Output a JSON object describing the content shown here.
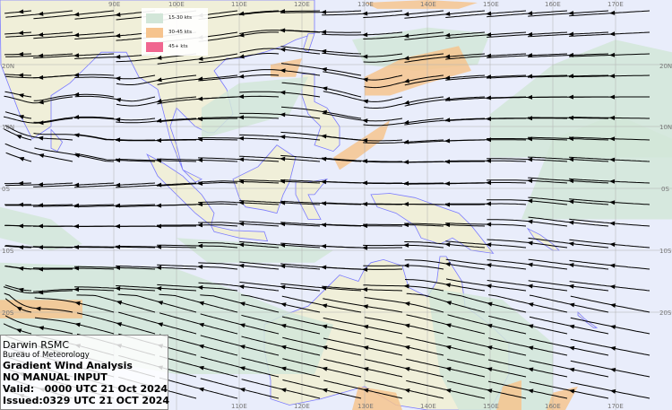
{
  "info_box": {
    "office": "Darwin RSMC",
    "agency": "Bureau of Meteorology",
    "product": "Gradient Wind Analysis",
    "note": "NO MANUAL INPUT",
    "valid": "Valid:   0000 UTC 21 Oct 2024",
    "issued": "Issued:0329 UTC 21 OCT 2024"
  },
  "legend": [
    {
      "label": "15-30 kts",
      "color": "#d2e6d8"
    },
    {
      "label": "30-45 kts",
      "color": "#f6c48e"
    },
    {
      "label": "45+ kts",
      "color": "#f06690"
    }
  ],
  "grid": {
    "top_lon_labels": [
      "90E",
      "100E",
      "110E",
      "120E",
      "130E",
      "140E",
      "150E",
      "160E",
      "170E"
    ],
    "bottom_lon_labels": [
      "110E",
      "120E",
      "130E",
      "140E",
      "150E",
      "160E",
      "170E"
    ],
    "left_lat_labels": [
      "20N",
      "10N",
      "0S",
      "10S",
      "20S"
    ],
    "right_lat_labels": [
      "20N",
      "10N",
      "0S",
      "10S",
      "20S"
    ]
  },
  "colors": {
    "ocean": "#e9edfb",
    "land": "#f0efd9",
    "coastline": "#7b7bff",
    "streamline": "#000000",
    "grid": "#b0b0b0"
  }
}
